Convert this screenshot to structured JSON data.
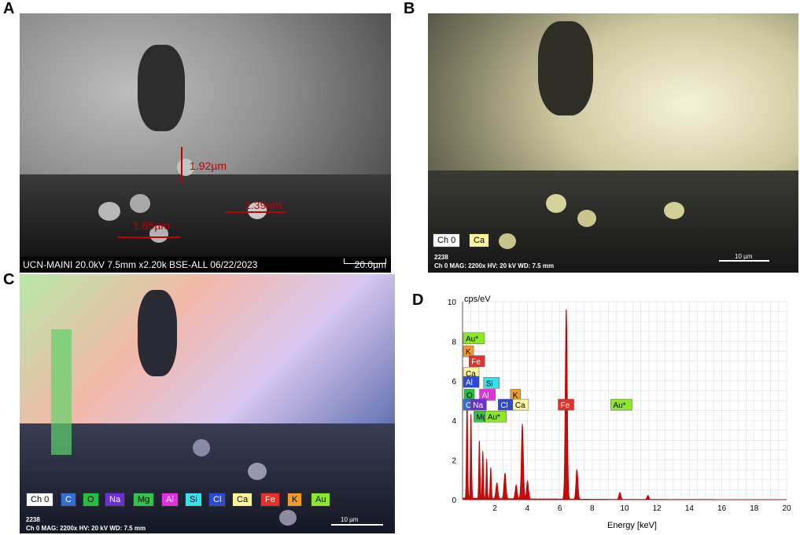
{
  "panel_labels": [
    "A",
    "B",
    "C",
    "D"
  ],
  "panelA": {
    "info_bar": "UCN-MAINI 20.0kV 7.5mm x2.20k BSE-ALL 06/22/2023",
    "scale": "20.0µm",
    "measurements": [
      "1.92µm",
      "2.39µm",
      "1.85µm"
    ]
  },
  "panelB": {
    "chips": [
      {
        "label": "Ch 0",
        "bg": "#ffffff",
        "fg": "#000000"
      },
      {
        "label": "Ca",
        "bg": "#fff59a",
        "fg": "#000000"
      }
    ],
    "meta_id": "2238",
    "meta": "Ch 0   MAG: 2200x   HV: 20 kV   WD: 7.5 mm",
    "scale": "10 µm"
  },
  "panelC": {
    "chips": [
      {
        "label": "Ch 0",
        "bg": "#ffffff",
        "fg": "#000000"
      },
      {
        "label": "C",
        "bg": "#2f6fd6",
        "fg": "#ffffff"
      },
      {
        "label": "O",
        "bg": "#22c23a",
        "fg": "#000000"
      },
      {
        "label": "Na",
        "bg": "#6b2fd6",
        "fg": "#ffffff"
      },
      {
        "label": "Mg",
        "bg": "#35c24a",
        "fg": "#000000"
      },
      {
        "label": "Al",
        "bg": "#e52fe0",
        "fg": "#ffffff"
      },
      {
        "label": "Si",
        "bg": "#38e0e8",
        "fg": "#000000"
      },
      {
        "label": "Cl",
        "bg": "#2d49d6",
        "fg": "#ffffff"
      },
      {
        "label": "Ca",
        "bg": "#fff59a",
        "fg": "#000000"
      },
      {
        "label": "Fe",
        "bg": "#e8302a",
        "fg": "#ffffff"
      },
      {
        "label": "K",
        "bg": "#f29b2a",
        "fg": "#000000"
      },
      {
        "label": "Au",
        "bg": "#8ee82a",
        "fg": "#000000"
      }
    ],
    "meta_id": "2238",
    "meta": "Ch 0   MAG: 2200x   HV: 20 kV   WD: 7.5 mm",
    "scale": "10 µm"
  },
  "chart_data": {
    "type": "line",
    "ylabel": "cps/eV",
    "xlabel": "Energy [keV]",
    "xlim": [
      0,
      20
    ],
    "ylim": [
      0,
      10
    ],
    "xticks": [
      2,
      4,
      6,
      8,
      10,
      12,
      14,
      16,
      18,
      20
    ],
    "yticks": [
      0,
      2,
      4,
      6,
      8,
      10
    ],
    "grid": true,
    "series_color": "#c00000",
    "peaks": [
      {
        "x": 0.28,
        "y": 5.2
      },
      {
        "x": 0.52,
        "y": 4.4
      },
      {
        "x": 1.04,
        "y": 3.0
      },
      {
        "x": 1.25,
        "y": 2.4
      },
      {
        "x": 1.49,
        "y": 2.0
      },
      {
        "x": 1.74,
        "y": 1.6
      },
      {
        "x": 2.12,
        "y": 0.8
      },
      {
        "x": 2.62,
        "y": 1.3
      },
      {
        "x": 3.31,
        "y": 0.7
      },
      {
        "x": 3.69,
        "y": 3.8
      },
      {
        "x": 4.01,
        "y": 0.9
      },
      {
        "x": 6.4,
        "y": 9.7
      },
      {
        "x": 7.06,
        "y": 1.5
      },
      {
        "x": 9.71,
        "y": 0.35
      },
      {
        "x": 11.44,
        "y": 0.2
      }
    ],
    "annotations": [
      {
        "text": "Au*",
        "x": 0.05,
        "y": 7.95,
        "bg": "#8ee82a",
        "fg": "#000000"
      },
      {
        "text": "K",
        "x": 0.05,
        "y": 7.3,
        "bg": "#f29b2a",
        "fg": "#000000"
      },
      {
        "text": "Fe",
        "x": 0.4,
        "y": 6.8,
        "bg": "#e8302a",
        "fg": "#ffffff"
      },
      {
        "text": "Ca",
        "x": 0.05,
        "y": 6.2,
        "bg": "#fff59a",
        "fg": "#000000"
      },
      {
        "text": "Al",
        "x": 0.05,
        "y": 5.75,
        "bg": "#2d49d6",
        "fg": "#ffffff"
      },
      {
        "text": "Si",
        "x": 1.3,
        "y": 5.7,
        "bg": "#38e0e8",
        "fg": "#000000"
      },
      {
        "text": "O",
        "x": 0.1,
        "y": 5.1,
        "bg": "#22c23a",
        "fg": "#000000"
      },
      {
        "text": "Al",
        "x": 1.05,
        "y": 5.1,
        "bg": "#e52fe0",
        "fg": "#ffffff"
      },
      {
        "text": "K",
        "x": 2.95,
        "y": 5.1,
        "bg": "#f29b2a",
        "fg": "#000000"
      },
      {
        "text": "C",
        "x": 0.05,
        "y": 4.6,
        "bg": "#2f6fd6",
        "fg": "#ffffff"
      },
      {
        "text": "Na",
        "x": 0.5,
        "y": 4.6,
        "bg": "#6b2fd6",
        "fg": "#ffffff"
      },
      {
        "text": "Cl",
        "x": 2.2,
        "y": 4.6,
        "bg": "#2d49d6",
        "fg": "#ffffff"
      },
      {
        "text": "Ca",
        "x": 3.1,
        "y": 4.6,
        "bg": "#fff59a",
        "fg": "#000000"
      },
      {
        "text": "Fe",
        "x": 5.9,
        "y": 4.6,
        "bg": "#e8302a",
        "fg": "#ffffff"
      },
      {
        "text": "Au*",
        "x": 9.15,
        "y": 4.6,
        "bg": "#8ee82a",
        "fg": "#000000"
      },
      {
        "text": "Mg",
        "x": 0.7,
        "y": 4.0,
        "bg": "#35c24a",
        "fg": "#000000"
      },
      {
        "text": "Au*",
        "x": 1.4,
        "y": 4.0,
        "bg": "#8ee82a",
        "fg": "#000000"
      }
    ]
  }
}
